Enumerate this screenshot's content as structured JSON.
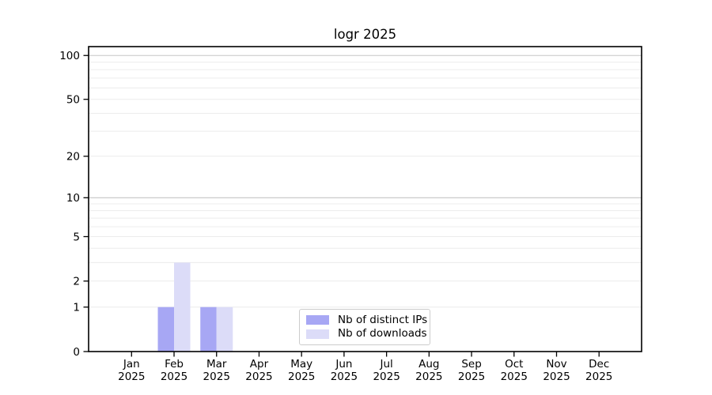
{
  "title": "logr 2025",
  "legend": {
    "items": [
      {
        "label": "Nb of distinct IPs",
        "color": "#a7a7f4"
      },
      {
        "label": "Nb of downloads",
        "color": "#dcdcf8"
      }
    ]
  },
  "chart_data": {
    "type": "bar",
    "title": "logr 2025",
    "categories": [
      "Jan",
      "Feb",
      "Mar",
      "Apr",
      "May",
      "Jun",
      "Jul",
      "Aug",
      "Sep",
      "Oct",
      "Nov",
      "Dec"
    ],
    "x_year": "2025",
    "series": [
      {
        "name": "Nb of distinct IPs",
        "color": "#a7a7f4",
        "values": [
          0,
          1,
          1,
          0,
          0,
          0,
          0,
          0,
          0,
          0,
          0,
          0
        ]
      },
      {
        "name": "Nb of downloads",
        "color": "#dcdcf8",
        "values": [
          0,
          3,
          1,
          0,
          0,
          0,
          0,
          0,
          0,
          0,
          0,
          0
        ]
      }
    ],
    "yticks": [
      0,
      1,
      2,
      5,
      10,
      20,
      50,
      100
    ],
    "minor_gridlines": [
      1,
      2,
      3,
      4,
      5,
      6,
      7,
      8,
      9,
      20,
      30,
      40,
      50,
      60,
      70,
      80,
      90
    ],
    "decade_gridlines": [
      10,
      100
    ],
    "scale": "log1p",
    "ylim": [
      0,
      115
    ],
    "grid": "horizontal",
    "legend_position": "inside lower center",
    "axis_color": "#000000",
    "grid_minor_color": "#ececec",
    "grid_major_color": "#c6c6c6"
  }
}
